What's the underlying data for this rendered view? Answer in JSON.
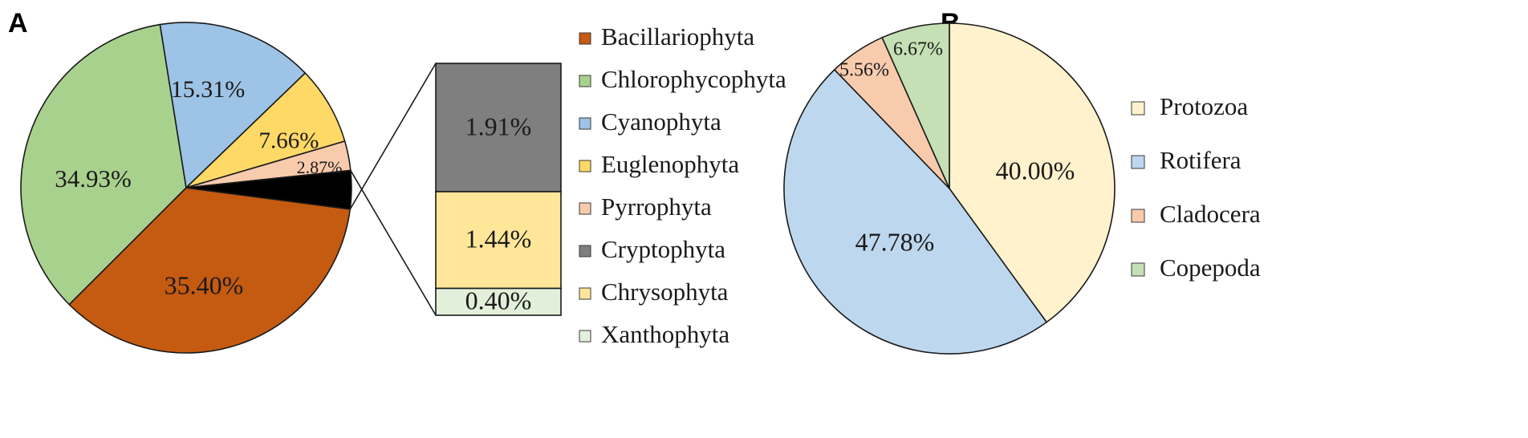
{
  "chart_data": [
    {
      "panel": "A",
      "type": "pie",
      "title": "",
      "slices": [
        {
          "name": "Bacillariophyta",
          "value": 35.4,
          "label": "35.40%",
          "color": "#c55a11"
        },
        {
          "name": "Chlorophycophyta",
          "value": 34.93,
          "label": "34.93%",
          "color": "#a9d18e"
        },
        {
          "name": "Cyanophyta",
          "value": 15.31,
          "label": "15.31%",
          "color": "#9dc3e6"
        },
        {
          "name": "Euglenophyta",
          "value": 7.66,
          "label": "7.66%",
          "color": "#ffd966"
        },
        {
          "name": "Pyrrophyta",
          "value": 2.87,
          "label": "2.87%",
          "color": "#f8cbad"
        },
        {
          "name": "Other (Cryptophyta, Chrysophyta, Xanthophyta)",
          "value": 3.75,
          "label": "",
          "color": "#000000"
        }
      ],
      "breakout": [
        {
          "name": "Cryptophyta",
          "value": 1.91,
          "label": "1.91%",
          "color": "#7f7f7f"
        },
        {
          "name": "Chrysophyta",
          "value": 1.44,
          "label": "1.44%",
          "color": "#ffe699"
        },
        {
          "name": "Xanthophyta",
          "value": 0.4,
          "label": "0.40%",
          "color": "#e2efda"
        }
      ],
      "legend": [
        {
          "label": "Bacillariophyta",
          "color": "#c55a11"
        },
        {
          "label": "Chlorophycophyta",
          "color": "#a9d18e"
        },
        {
          "label": "Cyanophyta",
          "color": "#9dc3e6"
        },
        {
          "label": "Euglenophyta",
          "color": "#ffd966"
        },
        {
          "label": "Pyrrophyta",
          "color": "#f8cbad"
        },
        {
          "label": "Cryptophyta",
          "color": "#7f7f7f"
        },
        {
          "label": "Chrysophyta",
          "color": "#ffe699"
        },
        {
          "label": "Xanthophyta",
          "color": "#e2efda"
        }
      ]
    },
    {
      "panel": "B",
      "type": "pie",
      "title": "",
      "slices": [
        {
          "name": "Protozoa",
          "value": 40.0,
          "label": "40.00%",
          "color": "#fff2cc"
        },
        {
          "name": "Rotifera",
          "value": 47.78,
          "label": "47.78%",
          "color": "#bdd7ee"
        },
        {
          "name": "Cladocera",
          "value": 5.56,
          "label": "5.56%",
          "color": "#f8cbad"
        },
        {
          "name": "Copepoda",
          "value": 6.67,
          "label": "6.67%",
          "color": "#c5e0b4"
        }
      ],
      "legend": [
        {
          "label": "Protozoa",
          "color": "#fff2cc"
        },
        {
          "label": "Rotifera",
          "color": "#bdd7ee"
        },
        {
          "label": "Cladocera",
          "color": "#f8cbad"
        },
        {
          "label": "Copepoda",
          "color": "#c5e0b4"
        }
      ]
    }
  ]
}
